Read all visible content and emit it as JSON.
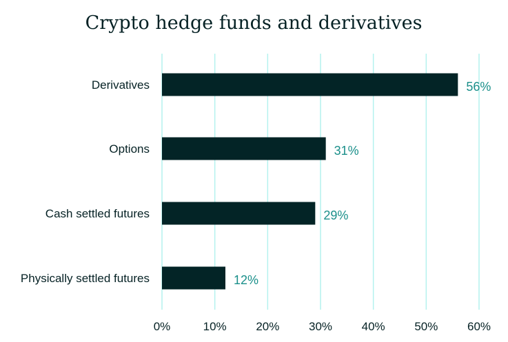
{
  "chart_data": {
    "type": "bar",
    "orientation": "horizontal",
    "title": "Crypto hedge funds and derivatives",
    "categories": [
      "Derivatives",
      "Options",
      "Cash settled futures",
      "Physically settled futures"
    ],
    "values": [
      56,
      31,
      29,
      12
    ],
    "value_labels": [
      "56%",
      "31%",
      "29%",
      "12%"
    ],
    "xlim": [
      0,
      60
    ],
    "xticks": [
      0,
      10,
      20,
      30,
      40,
      50,
      60
    ],
    "xtick_labels": [
      "0%",
      "10%",
      "20%",
      "30%",
      "40%",
      "50%",
      "60%"
    ],
    "xlabel": "",
    "ylabel": "",
    "grid": "vertical",
    "colors": {
      "bar": "#032426",
      "grid": "#b4f2ee",
      "value_label": "#1a8f8a",
      "text": "#052124"
    }
  }
}
